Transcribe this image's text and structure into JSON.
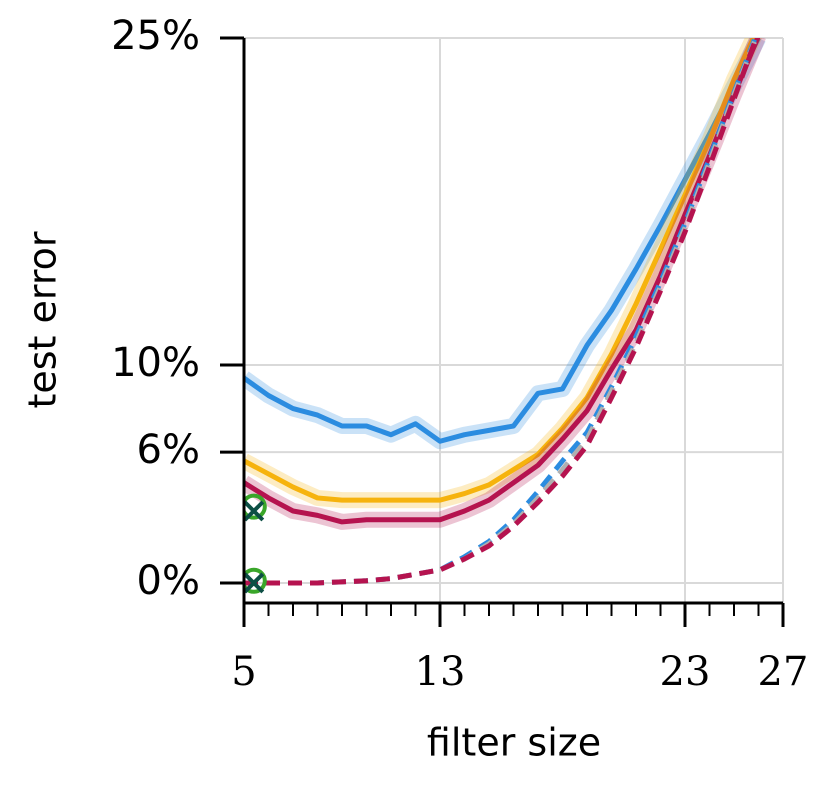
{
  "chart_data": {
    "type": "line",
    "x_label": "filter size",
    "y_label": "test error",
    "xlim": [
      5,
      27
    ],
    "xticks": [
      5,
      13,
      23,
      27
    ],
    "xminorticks": [
      6,
      7,
      8,
      9,
      10,
      11,
      12,
      14,
      15,
      16,
      17,
      18,
      19,
      20,
      21,
      22,
      24,
      25,
      26
    ],
    "ylim": [
      -0.92,
      25
    ],
    "yticks": [
      {
        "value": 0,
        "label": "0%"
      },
      {
        "value": 6,
        "label": "6%"
      },
      {
        "value": 10,
        "label": "10%"
      },
      {
        "value": 25,
        "label": "25%"
      }
    ],
    "grid": true,
    "x": [
      5,
      6,
      7,
      8,
      9,
      10,
      11,
      12,
      13,
      14,
      15,
      16,
      17,
      18,
      19,
      20,
      21,
      22,
      23,
      24,
      25,
      26
    ],
    "series": [
      {
        "color": "#2b8ce0",
        "dash": false,
        "values": [
          9.4,
          8.6,
          8.0,
          7.7,
          7.2,
          7.2,
          6.8,
          7.3,
          6.5,
          6.8,
          7.0,
          7.2,
          8.7,
          8.9,
          10.9,
          12.5,
          14.4,
          16.4,
          18.5,
          20.6,
          22.8,
          25.0
        ]
      },
      {
        "color": "#f6b30d",
        "dash": false,
        "values": [
          5.6,
          5.0,
          4.4,
          3.9,
          3.8,
          3.8,
          3.8,
          3.8,
          3.8,
          4.1,
          4.5,
          5.2,
          5.9,
          7.1,
          8.5,
          10.5,
          12.8,
          15.3,
          17.8,
          20.3,
          23.1,
          25.5
        ]
      },
      {
        "color": "#b5134f",
        "dash": false,
        "values": [
          4.6,
          3.9,
          3.3,
          3.1,
          2.8,
          2.9,
          2.9,
          2.9,
          2.9,
          3.3,
          3.8,
          4.6,
          5.4,
          6.6,
          7.9,
          9.8,
          11.6,
          14.1,
          16.9,
          19.6,
          22.4,
          25.1
        ]
      },
      {
        "color": "#2b8ce0",
        "dash": true,
        "values": [
          0,
          0,
          0,
          0,
          0.05,
          0.1,
          0.2,
          0.4,
          0.6,
          1.2,
          1.9,
          2.9,
          4.2,
          5.6,
          6.9,
          9.0,
          11.3,
          13.8,
          16.5,
          19.5,
          22.5,
          25.4
        ]
      },
      {
        "color": "#b0b0b0",
        "dash": true,
        "values": [
          0,
          0,
          0,
          0,
          0.05,
          0.1,
          0.2,
          0.4,
          0.6,
          1.1,
          1.8,
          2.7,
          3.9,
          5.2,
          6.6,
          8.8,
          11.0,
          13.6,
          16.3,
          19.3,
          22.4,
          25.3
        ]
      },
      {
        "color": "#b5134f",
        "dash": true,
        "values": [
          0,
          0,
          0,
          0,
          0.05,
          0.1,
          0.2,
          0.4,
          0.6,
          1.1,
          1.7,
          2.6,
          3.7,
          4.9,
          6.3,
          8.5,
          10.8,
          13.4,
          16.1,
          19.1,
          22.2,
          25.3
        ]
      }
    ],
    "markers": [
      {
        "x": 5.4,
        "y": 3.5,
        "marker": "o",
        "color": "#3aa62a"
      },
      {
        "x": 5.4,
        "y": 3.3,
        "marker": "x",
        "color": "#0d4f45"
      },
      {
        "x": 5.4,
        "y": 0.1,
        "marker": "o",
        "color": "#3aa62a"
      },
      {
        "x": 5.4,
        "y": 0,
        "marker": "x",
        "color": "#0d4f45"
      }
    ]
  }
}
